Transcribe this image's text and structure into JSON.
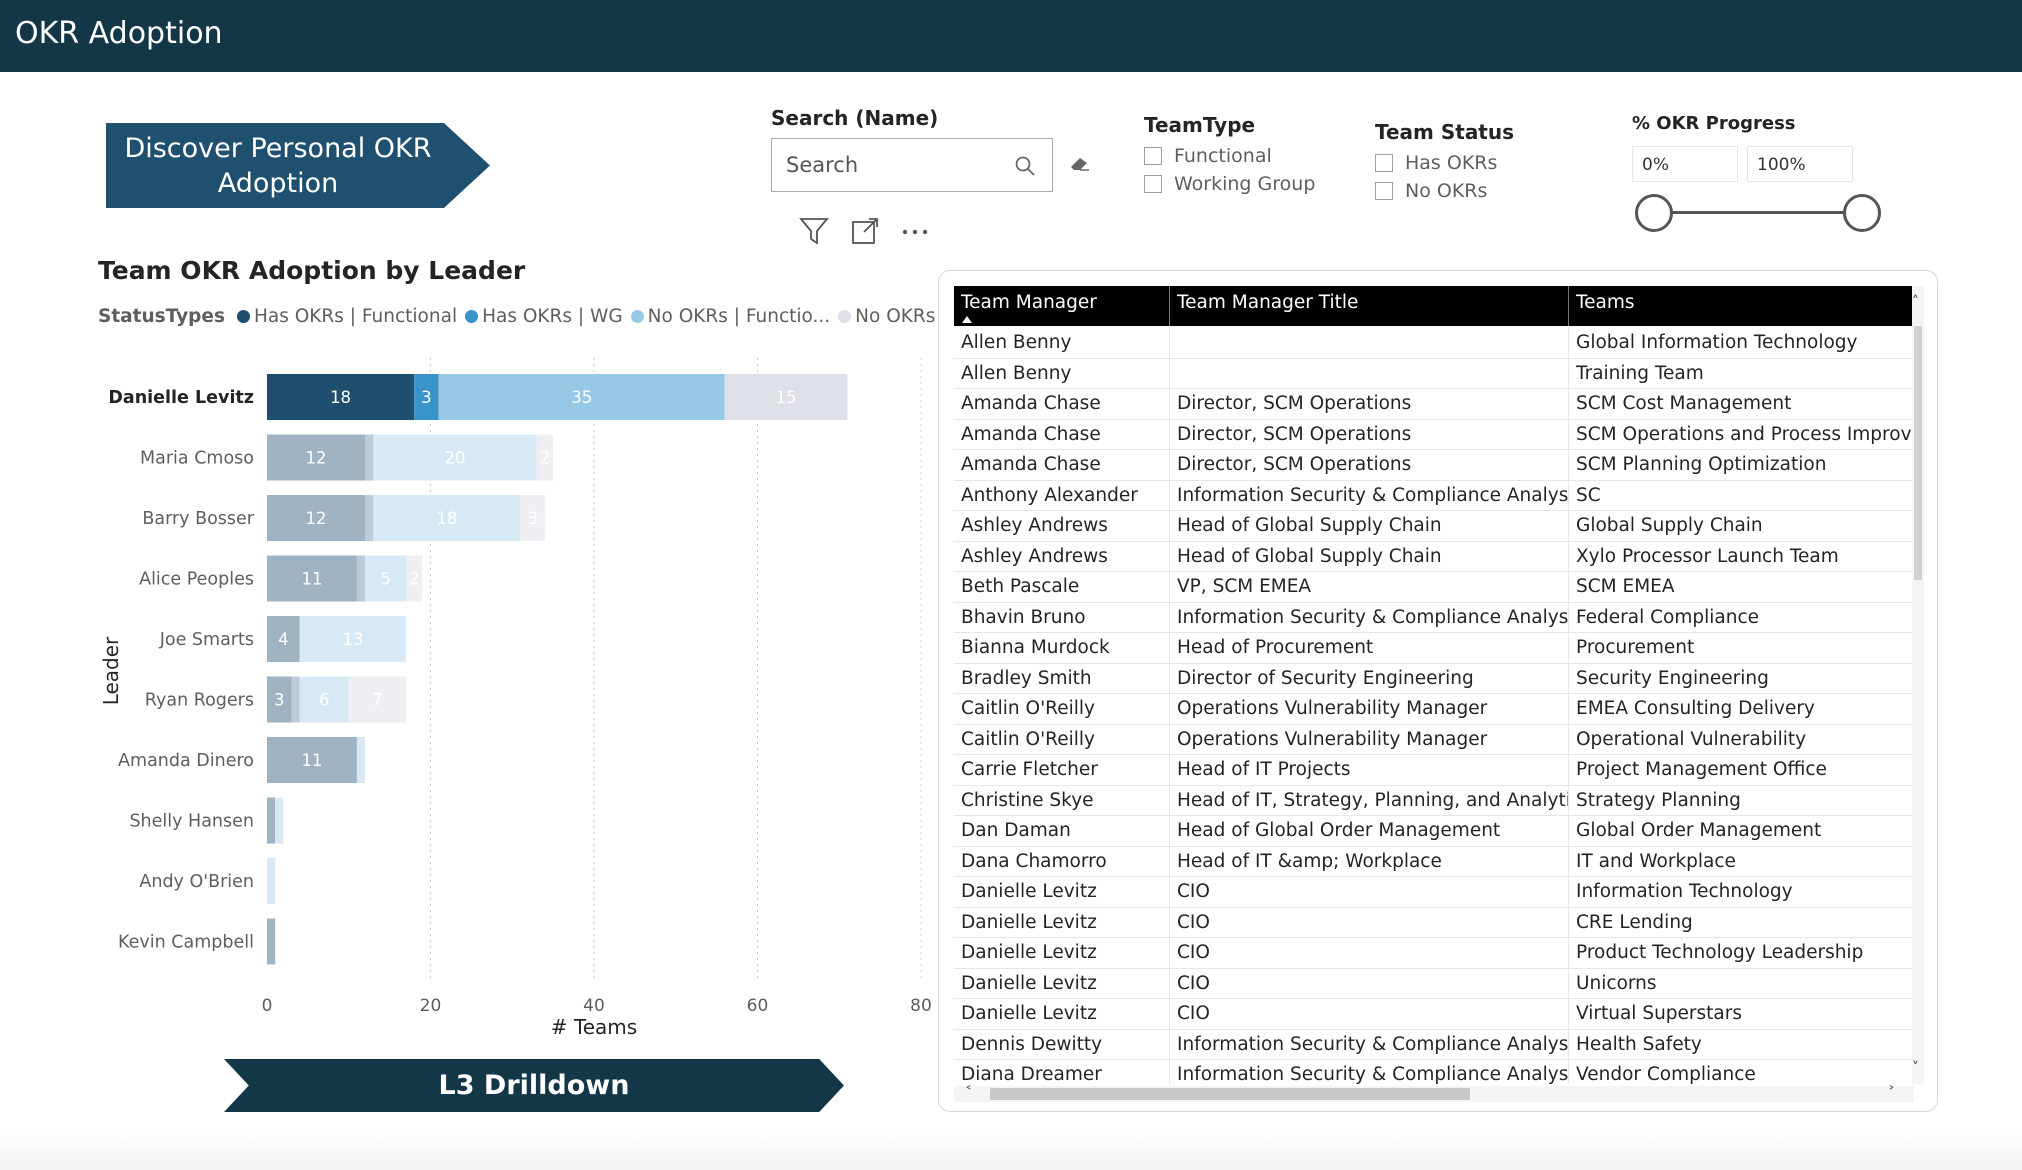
{
  "header": {
    "title": "OKR Adoption"
  },
  "nav": {
    "discover_line1": "Discover Personal OKR",
    "discover_line2": "Adoption",
    "drilldown_label": "L3 Drilldown"
  },
  "search": {
    "title": "Search (Name)",
    "placeholder": "Search"
  },
  "team_type": {
    "title": "TeamType",
    "options": [
      "Functional",
      "Working Group"
    ]
  },
  "team_status": {
    "title": "Team Status",
    "options": [
      "Has OKRs",
      "No OKRs"
    ]
  },
  "okr_progress": {
    "title": "% OKR Progress",
    "min_label": "0%",
    "max_label": "100%",
    "min": 0,
    "max": 100
  },
  "colors": {
    "header": "#143748",
    "has_func": "#1f4e6e",
    "has_wg": "#3a93c9",
    "no_func": "#97c9e7",
    "no_wg": "#dde0e6"
  },
  "chart_data": {
    "type": "bar",
    "orientation": "horizontal",
    "stacked": true,
    "title": "Team OKR Adoption by Leader",
    "legend_title": "StatusTypes",
    "legend": [
      "Has OKRs | Functional",
      "Has OKRs | WG",
      "No OKRs | Functio...",
      "No OKRs | WG"
    ],
    "xlabel": "# Teams",
    "ylabel": "Leader",
    "xlim": [
      0,
      80
    ],
    "xticks": [
      0,
      20,
      40,
      60,
      80
    ],
    "categories": [
      "Danielle Levitz",
      "Maria Cmoso",
      "Barry Bosser",
      "Alice Peoples",
      "Joe Smarts",
      "Ryan Rogers",
      "Amanda Dinero",
      "Shelly Hansen",
      "Andy O'Brien",
      "Kevin Campbell"
    ],
    "highlighted_category": "Danielle Levitz",
    "series": [
      {
        "name": "Has OKRs | Functional",
        "values": [
          18,
          12,
          12,
          11,
          4,
          3,
          11,
          1,
          0,
          1
        ]
      },
      {
        "name": "Has OKRs | WG",
        "values": [
          3,
          1,
          1,
          1,
          0,
          1,
          0,
          0,
          0,
          0
        ]
      },
      {
        "name": "No OKRs | Functio...",
        "values": [
          35,
          20,
          18,
          5,
          13,
          6,
          1,
          1,
          1,
          0
        ]
      },
      {
        "name": "No OKRs | WG",
        "values": [
          15,
          2,
          3,
          2,
          0,
          7,
          0,
          0,
          0,
          0
        ]
      }
    ],
    "data_labels": [
      [
        "18",
        "3",
        "35",
        "15"
      ],
      [
        "12",
        "",
        "20",
        "2"
      ],
      [
        "12",
        "",
        "18",
        "3"
      ],
      [
        "11",
        "",
        "5",
        "2"
      ],
      [
        "4",
        "",
        "13",
        ""
      ],
      [
        "3",
        "",
        "6",
        "7"
      ],
      [
        "11",
        "",
        "",
        ""
      ],
      [
        "",
        "",
        "",
        ""
      ],
      [
        "",
        "",
        "",
        ""
      ],
      [
        "",
        "",
        "",
        ""
      ]
    ]
  },
  "table": {
    "columns": [
      "Team Manager",
      "Team Manager Title",
      "Teams"
    ],
    "rows": [
      [
        "Allen Benny",
        "",
        "Global Information Technology"
      ],
      [
        "Allen Benny",
        "",
        "Training Team"
      ],
      [
        "Amanda Chase",
        "Director, SCM Operations",
        "SCM Cost Management"
      ],
      [
        "Amanda Chase",
        "Director, SCM Operations",
        "SCM Operations and Process Improvem"
      ],
      [
        "Amanda Chase",
        "Director, SCM Operations",
        "SCM Planning Optimization"
      ],
      [
        "Anthony Alexander",
        "Information Security & Compliance Analyst",
        "SC"
      ],
      [
        "Ashley Andrews",
        "Head of Global Supply Chain",
        "Global Supply Chain"
      ],
      [
        "Ashley Andrews",
        "Head of Global Supply Chain",
        "Xylo Processor Launch Team"
      ],
      [
        "Beth Pascale",
        "VP, SCM EMEA",
        "SCM EMEA"
      ],
      [
        "Bhavin Bruno",
        "Information Security & Compliance Analyst",
        "Federal Compliance"
      ],
      [
        "Bianna Murdock",
        "Head of Procurement",
        "Procurement"
      ],
      [
        "Bradley Smith",
        "Director of Security Engineering",
        "Security Engineering"
      ],
      [
        "Caitlin O'Reilly",
        "Operations Vulnerability Manager",
        "EMEA Consulting Delivery"
      ],
      [
        "Caitlin O'Reilly",
        "Operations Vulnerability Manager",
        "Operational Vulnerability"
      ],
      [
        "Carrie Fletcher",
        "Head of IT Projects",
        "Project Management Office"
      ],
      [
        "Christine Skye",
        "Head of IT, Strategy, Planning, and Analytics",
        "Strategy Planning"
      ],
      [
        "Dan Daman",
        "Head of Global Order Management",
        "Global Order Management"
      ],
      [
        "Dana Chamorro",
        "Head of IT &amp; Workplace",
        "IT and Workplace"
      ],
      [
        "Danielle Levitz",
        "CIO",
        "Information Technology"
      ],
      [
        "Danielle Levitz",
        "CIO",
        "CRE Lending"
      ],
      [
        "Danielle Levitz",
        "CIO",
        "Product Technology Leadership"
      ],
      [
        "Danielle Levitz",
        "CIO",
        "Unicorns"
      ],
      [
        "Danielle Levitz",
        "CIO",
        "Virtual Superstars"
      ],
      [
        "Dennis Dewitty",
        "Information Security & Compliance Analyst",
        "Health Safety"
      ],
      [
        "Diana Dreamer",
        "Information Security & Compliance Analyst",
        "Vendor Compliance"
      ]
    ]
  }
}
